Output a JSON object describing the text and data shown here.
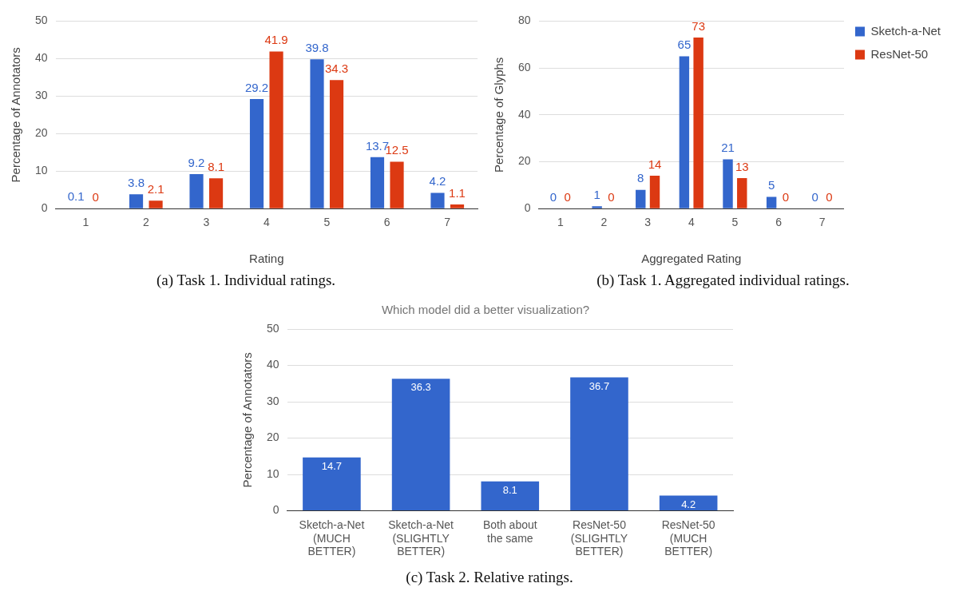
{
  "chart_data": [
    {
      "type": "bar",
      "xlabel": "Rating",
      "ylabel": "Percentage of Annotators",
      "categories": [
        "1",
        "2",
        "3",
        "4",
        "5",
        "6",
        "7"
      ],
      "series": [
        {
          "color": "#3366cc",
          "values": [
            0.1,
            3.8,
            9.2,
            29.2,
            39.8,
            13.7,
            4.2
          ]
        },
        {
          "color": "#dc3912",
          "values": [
            0,
            2.1,
            8.1,
            41.9,
            34.3,
            12.5,
            1.1
          ]
        }
      ],
      "ylim": [
        0,
        50
      ],
      "yticks": [
        0,
        10,
        20,
        30,
        40,
        50
      ],
      "grid": "y",
      "data_labels": true,
      "annotations": [
        "(a) Task 1. Individual ratings."
      ]
    },
    {
      "type": "bar",
      "xlabel": "Aggregated Rating",
      "ylabel": "Percentage of Glyphs",
      "categories": [
        "1",
        "2",
        "3",
        "4",
        "5",
        "6",
        "7"
      ],
      "series": [
        {
          "name": "Sketch-a-Net",
          "color": "#3366cc",
          "values": [
            0,
            1,
            8,
            65,
            21,
            5,
            0
          ]
        },
        {
          "name": "ResNet-50",
          "color": "#dc3912",
          "values": [
            0,
            0,
            14,
            73,
            13,
            0,
            0
          ]
        }
      ],
      "ylim": [
        0,
        80
      ],
      "yticks": [
        0,
        20,
        40,
        60,
        80
      ],
      "grid": "y",
      "data_labels": true,
      "legend": "top right",
      "annotations": [
        "(b) Task 1. Aggregated individual ratings."
      ]
    },
    {
      "type": "bar",
      "title": "Which model did a better visualization?",
      "ylabel": "Percentage of Annotators",
      "categories": [
        "Sketch-a-Net\n(MUCH\nBETTER)",
        "Sketch-a-Net\n(SLIGHTLY\nBETTER)",
        "Both about\nthe same",
        "ResNet-50\n(SLIGHTLY\nBETTER)",
        "ResNet-50\n(MUCH\nBETTER)"
      ],
      "series": [
        {
          "color": "#3366cc",
          "values": [
            14.7,
            36.3,
            8.1,
            36.7,
            4.2
          ]
        }
      ],
      "ylim": [
        0,
        50
      ],
      "yticks": [
        0,
        10,
        20,
        30,
        40,
        50
      ],
      "grid": "y",
      "data_labels": true,
      "annotations": [
        "(c) Task 2. Relative ratings."
      ]
    }
  ]
}
